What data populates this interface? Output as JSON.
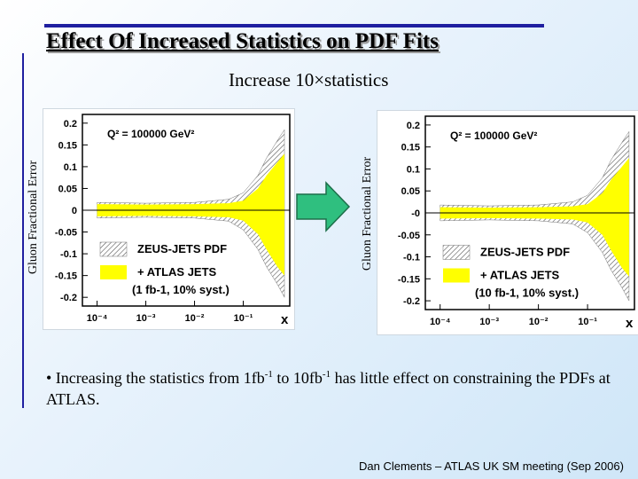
{
  "slide": {
    "title": "Effect Of Increased Statistics on PDF Fits",
    "subtitle": "Increase 10×statistics",
    "bullet": {
      "p1": "• Increasing the statistics from 1fb",
      "sup1": "-1",
      "p2": " to 10fb",
      "sup2": "-1",
      "p3": " has little effect on constraining the PDFs at ATLAS."
    },
    "footer": "Dan Clements – ATLAS UK SM meeting (Sep 2006)",
    "arrow_color": "#2fbf7f"
  },
  "chart_data": [
    {
      "type": "area",
      "ylabel": "Gluon Fractional Error",
      "xlabel": "x",
      "annotation": "Q² = 100000 GeV²",
      "xscale": "log",
      "xlim": [
        5e-05,
        0.9
      ],
      "ylim": [
        -0.22,
        0.22
      ],
      "yticks": [
        "0.2",
        "0.15",
        "0.1",
        "0.05",
        "0",
        "-0.05",
        "-0.1",
        "-0.15",
        "-0.2"
      ],
      "xticks": [
        "10⁻⁴",
        "10⁻³",
        "10⁻²",
        "10⁻¹"
      ],
      "legend": [
        "ZEUS-JETS PDF",
        "+ ATLAS JETS",
        "(1 fb-1, 10% syst.)"
      ],
      "series": [
        {
          "name": "ZEUS-JETS PDF",
          "style": "hatched",
          "x": [
            0.0001,
            0.001,
            0.01,
            0.05,
            0.1,
            0.2,
            0.3,
            0.5,
            0.7
          ],
          "upper": [
            0.018,
            0.016,
            0.018,
            0.025,
            0.04,
            0.08,
            0.12,
            0.16,
            0.185
          ],
          "lower": [
            -0.018,
            -0.016,
            -0.018,
            -0.025,
            -0.045,
            -0.09,
            -0.13,
            -0.17,
            -0.2
          ]
        },
        {
          "name": "+ ATLAS JETS",
          "style": "yellow",
          "x": [
            0.0001,
            0.001,
            0.01,
            0.05,
            0.1,
            0.2,
            0.3,
            0.5,
            0.7
          ],
          "upper": [
            0.014,
            0.013,
            0.014,
            0.016,
            0.022,
            0.05,
            0.08,
            0.11,
            0.13
          ],
          "lower": [
            -0.014,
            -0.013,
            -0.014,
            -0.016,
            -0.024,
            -0.055,
            -0.09,
            -0.13,
            -0.15
          ]
        }
      ]
    },
    {
      "type": "area",
      "ylabel": "Gluon Fractional Error",
      "xlabel": "x",
      "annotation": "Q² = 100000 GeV²",
      "xscale": "log",
      "xlim": [
        5e-05,
        0.9
      ],
      "ylim": [
        -0.22,
        0.22
      ],
      "yticks": [
        "0.2",
        "0.15",
        "0.1",
        "0.05",
        "-0",
        "-0.05",
        "-0.1",
        "-0.15",
        "-0.2"
      ],
      "xticks": [
        "10⁻⁴",
        "10⁻³",
        "10⁻²",
        "10⁻¹"
      ],
      "legend": [
        "ZEUS-JETS PDF",
        "+ ATLAS JETS",
        "(10 fb-1, 10% syst.)"
      ],
      "series": [
        {
          "name": "ZEUS-JETS PDF",
          "style": "hatched",
          "x": [
            0.0001,
            0.001,
            0.01,
            0.05,
            0.1,
            0.2,
            0.3,
            0.5,
            0.7
          ],
          "upper": [
            0.018,
            0.016,
            0.018,
            0.025,
            0.04,
            0.08,
            0.12,
            0.16,
            0.185
          ],
          "lower": [
            -0.018,
            -0.016,
            -0.018,
            -0.025,
            -0.045,
            -0.09,
            -0.13,
            -0.17,
            -0.2
          ]
        },
        {
          "name": "+ ATLAS JETS",
          "style": "yellow",
          "x": [
            0.0001,
            0.001,
            0.01,
            0.05,
            0.1,
            0.2,
            0.3,
            0.5,
            0.7
          ],
          "upper": [
            0.013,
            0.012,
            0.013,
            0.015,
            0.02,
            0.045,
            0.075,
            0.105,
            0.125
          ],
          "lower": [
            -0.013,
            -0.012,
            -0.013,
            -0.015,
            -0.022,
            -0.05,
            -0.085,
            -0.125,
            -0.145
          ]
        }
      ]
    }
  ]
}
